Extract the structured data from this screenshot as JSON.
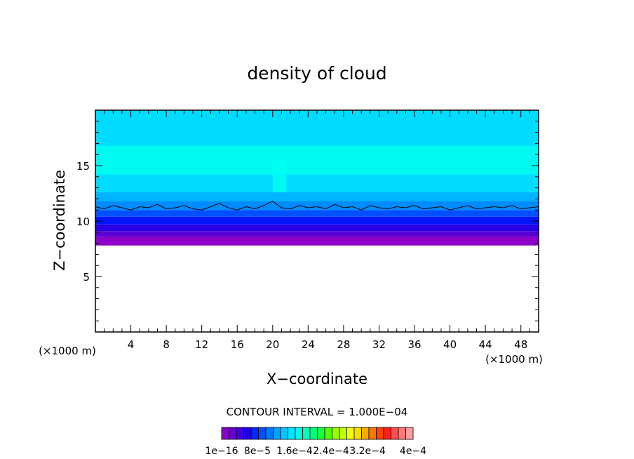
{
  "chart_data": {
    "type": "heatmap",
    "title": "density of cloud",
    "xlabel": "X−coordinate",
    "ylabel": "Z−coordinate",
    "x_unit_left": "(×1000 m)",
    "x_unit_right": "(×1000 m)",
    "xlim": [
      0,
      50
    ],
    "ylim": [
      0,
      20
    ],
    "xticks": [
      4,
      8,
      12,
      16,
      20,
      24,
      28,
      32,
      36,
      40,
      44,
      48
    ],
    "yticks": [
      5,
      10,
      15
    ],
    "x_minor_step": 1,
    "y_minor_step": 1,
    "contour_interval_label": "CONTOUR INTERVAL = 1.000E−04",
    "colorbar_labels": [
      "1e−16",
      "8e−5",
      "1.6e−4",
      "2.4e−4",
      "3.2e−4",
      "4e−4"
    ],
    "colorbar_colors": [
      "#8c00c8",
      "#6400d2",
      "#3c00dc",
      "#1e00f0",
      "#0028ff",
      "#0050ff",
      "#0078ff",
      "#00a0ff",
      "#00c8ff",
      "#00e6ff",
      "#00ffe6",
      "#00ffb4",
      "#00ff78",
      "#1eff3c",
      "#50ff00",
      "#96ff00",
      "#c8ff00",
      "#f0ff00",
      "#ffdc00",
      "#ffaa00",
      "#ff7800",
      "#ff4600",
      "#ff1e1e",
      "#ff5050",
      "#ff7878",
      "#ffa0a0"
    ],
    "cloud_bands": [
      {
        "z_from": 7.8,
        "z_to": 8.6,
        "color": "#8c00c8"
      },
      {
        "z_from": 8.6,
        "z_to": 9.1,
        "color": "#5a00d2"
      },
      {
        "z_from": 9.1,
        "z_to": 9.7,
        "color": "#2800e6"
      },
      {
        "z_from": 9.7,
        "z_to": 10.4,
        "color": "#0014ff"
      },
      {
        "z_from": 10.4,
        "z_to": 11.0,
        "color": "#0050ff"
      },
      {
        "z_from": 11.0,
        "z_to": 11.8,
        "color": "#008cff"
      },
      {
        "z_from": 11.8,
        "z_to": 12.6,
        "color": "#00b4ff"
      },
      {
        "z_from": 12.6,
        "z_to": 20.0,
        "color": "#00dcff"
      }
    ],
    "cyan_patches": [
      {
        "x_from": 0,
        "x_to": 50,
        "z_from": 14.2,
        "z_to": 16.8,
        "color": "#00fff0"
      },
      {
        "x_from": 20,
        "x_to": 21.5,
        "z_from": 12.6,
        "z_to": 15.5,
        "color": "#00fff0"
      }
    ],
    "contour_line_z": [
      11.3,
      11.1,
      11.4,
      11.2,
      11.0,
      11.3,
      11.2,
      11.5,
      11.1,
      11.2,
      11.4,
      11.1,
      11.0,
      11.3,
      11.6,
      11.2,
      11.0,
      11.3,
      11.1,
      11.4,
      11.8,
      11.2,
      11.1,
      11.4,
      11.2,
      11.3,
      11.1,
      11.5,
      11.2,
      11.3,
      11.0,
      11.4,
      11.2,
      11.1,
      11.3,
      11.2,
      11.4,
      11.1,
      11.2,
      11.3,
      11.0,
      11.2,
      11.4,
      11.1,
      11.2,
      11.3,
      11.2,
      11.4,
      11.1,
      11.2,
      11.3
    ]
  }
}
